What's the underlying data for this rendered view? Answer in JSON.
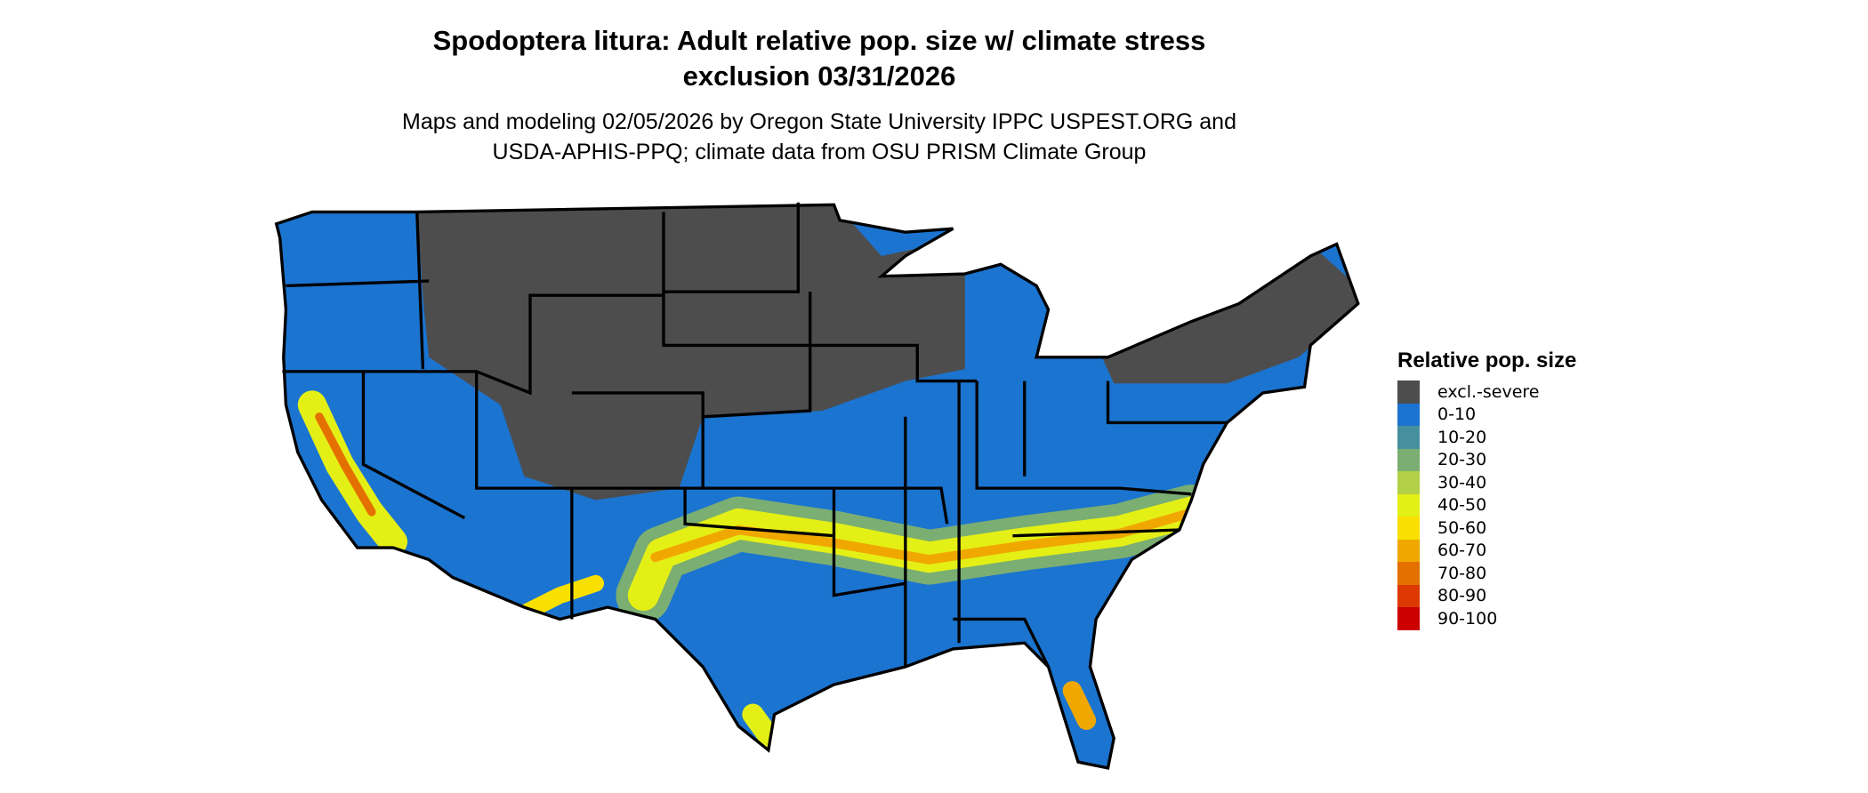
{
  "title_line1": "Spodoptera litura: Adult relative pop. size w/ climate stress",
  "title_line2": "exclusion 03/31/2026",
  "subtitle_line1": "Maps and modeling 02/05/2026 by Oregon State University IPPC USPEST.ORG and",
  "subtitle_line2": "USDA-APHIS-PPQ; climate data from OSU PRISM Climate Group",
  "legend": {
    "title": "Relative pop. size",
    "items": [
      {
        "label": "excl.-severe",
        "color": "#4d4d4d"
      },
      {
        "label": "0-10",
        "color": "#1b74d0"
      },
      {
        "label": "10-20",
        "color": "#46909e"
      },
      {
        "label": "20-30",
        "color": "#7bae72"
      },
      {
        "label": "30-40",
        "color": "#b2d048"
      },
      {
        "label": "40-50",
        "color": "#e4f015"
      },
      {
        "label": "50-60",
        "color": "#f9e000"
      },
      {
        "label": "60-70",
        "color": "#f0a800"
      },
      {
        "label": "70-80",
        "color": "#e47000"
      },
      {
        "label": "80-90",
        "color": "#dc3800"
      },
      {
        "label": "90-100",
        "color": "#cc0000"
      }
    ]
  },
  "map": {
    "region": "Contiguous United States",
    "state_border_color": "#000000"
  }
}
